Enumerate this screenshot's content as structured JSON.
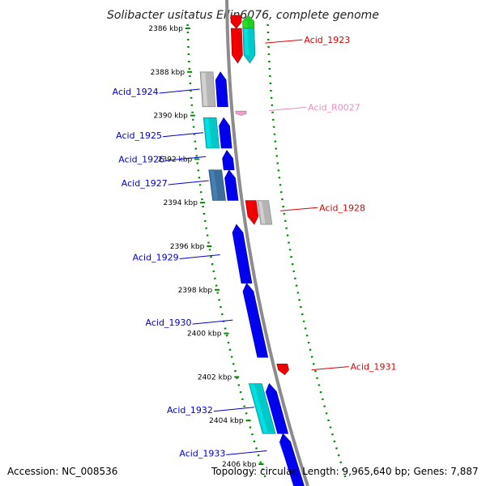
{
  "title": "Solibacter usitatus Ellin6076, complete genome",
  "footer": {
    "accession": "Accession: NC_008536",
    "topology": "Topology: circular; Length: 9,965,640 bp; Genes: 7,887"
  },
  "colors": {
    "blue": "#0000ee",
    "red": "#ee0000",
    "cyan": "#00c8c8",
    "gray": "#b4b4b4",
    "steel": "#3c6e9b",
    "green": "#22cc22",
    "pink": "#f0a0c8",
    "label_blue": "#0000cc",
    "label_red": "#dd0000",
    "label_pink": "#e88cc0",
    "dots": "#008800",
    "backbone": "#8c8c8c"
  },
  "ticks": [
    {
      "kbp": 2386,
      "label": "2386 kbp"
    },
    {
      "kbp": 2388,
      "label": "2388 kbp"
    },
    {
      "kbp": 2390,
      "label": "2390 kbp"
    },
    {
      "kbp": 2392,
      "label": "2392 kbp"
    },
    {
      "kbp": 2394,
      "label": "2394 kbp"
    },
    {
      "kbp": 2396,
      "label": "2396 kbp"
    },
    {
      "kbp": 2398,
      "label": "2398 kbp"
    },
    {
      "kbp": 2400,
      "label": "2400 kbp"
    },
    {
      "kbp": 2402,
      "label": "2402 kbp"
    },
    {
      "kbp": 2404,
      "label": "2404 kbp"
    },
    {
      "kbp": 2406,
      "label": "2406 kbp"
    }
  ],
  "genes": [
    {
      "start": 2385.4,
      "end": 2386.0,
      "lane": -1,
      "color": "red",
      "dir": "rev"
    },
    {
      "start": 2385.4,
      "end": 2386.0,
      "lane": -2,
      "color": "green",
      "dir": "fwd"
    },
    {
      "start": 2386.0,
      "end": 2387.6,
      "lane": -1,
      "color": "red",
      "dir": "rev"
    },
    {
      "start": 2386.0,
      "end": 2387.6,
      "lane": -2,
      "color": "cyan",
      "dir": "rev"
    },
    {
      "start": 2388.0,
      "end": 2389.6,
      "lane": 2,
      "color": "gray",
      "dir": "none"
    },
    {
      "start": 2388.0,
      "end": 2389.6,
      "lane": 1,
      "color": "blue",
      "dir": "fwd"
    },
    {
      "start": 2389.8,
      "end": 2390.0,
      "lane": -1,
      "color": "pink",
      "dir": "rev"
    },
    {
      "start": 2390.1,
      "end": 2391.5,
      "lane": 2,
      "color": "cyan",
      "dir": "none"
    },
    {
      "start": 2390.1,
      "end": 2391.5,
      "lane": 1,
      "color": "blue",
      "dir": "fwd"
    },
    {
      "start": 2391.6,
      "end": 2392.5,
      "lane": 1,
      "color": "blue",
      "dir": "fwd"
    },
    {
      "start": 2392.5,
      "end": 2393.9,
      "lane": 2,
      "color": "steel",
      "dir": "none"
    },
    {
      "start": 2392.5,
      "end": 2393.9,
      "lane": 1,
      "color": "blue",
      "dir": "fwd"
    },
    {
      "start": 2393.9,
      "end": 2395.0,
      "lane": -1,
      "color": "red",
      "dir": "rev"
    },
    {
      "start": 2393.9,
      "end": 2395.0,
      "lane": -2,
      "color": "gray",
      "dir": "none"
    },
    {
      "start": 2395.0,
      "end": 2397.7,
      "lane": 1,
      "color": "blue",
      "dir": "fwd"
    },
    {
      "start": 2397.7,
      "end": 2401.1,
      "lane": 1,
      "color": "blue",
      "dir": "fwd"
    },
    {
      "start": 2401.4,
      "end": 2401.9,
      "lane": -1,
      "color": "red",
      "dir": "rev"
    },
    {
      "start": 2402.3,
      "end": 2404.6,
      "lane": 2,
      "color": "cyan",
      "dir": "none"
    },
    {
      "start": 2402.3,
      "end": 2404.6,
      "lane": 1,
      "color": "blue",
      "dir": "fwd"
    },
    {
      "start": 2404.6,
      "end": 2407.2,
      "lane": 1,
      "color": "blue",
      "dir": "fwd"
    }
  ],
  "labels": [
    {
      "text": "Acid_1923",
      "side": "right",
      "kbp": 2386.6,
      "color": "label_red"
    },
    {
      "text": "Acid_1924",
      "side": "left",
      "kbp": 2388.9,
      "color": "label_blue"
    },
    {
      "text": "Acid_R0027",
      "side": "right",
      "kbp": 2389.7,
      "color": "label_pink"
    },
    {
      "text": "Acid_1925",
      "side": "left",
      "kbp": 2390.9,
      "color": "label_blue"
    },
    {
      "text": "Acid_1926",
      "side": "left",
      "kbp": 2392.0,
      "color": "label_blue"
    },
    {
      "text": "Acid_1927",
      "side": "left",
      "kbp": 2393.1,
      "color": "label_blue"
    },
    {
      "text": "Acid_1928",
      "side": "right",
      "kbp": 2394.3,
      "color": "label_red"
    },
    {
      "text": "Acid_1929",
      "side": "left",
      "kbp": 2396.5,
      "color": "label_blue"
    },
    {
      "text": "Acid_1930",
      "side": "left",
      "kbp": 2399.5,
      "color": "label_blue"
    },
    {
      "text": "Acid_1931",
      "side": "right",
      "kbp": 2401.6,
      "color": "label_red"
    },
    {
      "text": "Acid_1932",
      "side": "left",
      "kbp": 2403.5,
      "color": "label_blue"
    },
    {
      "text": "Acid_1933",
      "side": "left",
      "kbp": 2405.5,
      "color": "label_blue"
    }
  ]
}
